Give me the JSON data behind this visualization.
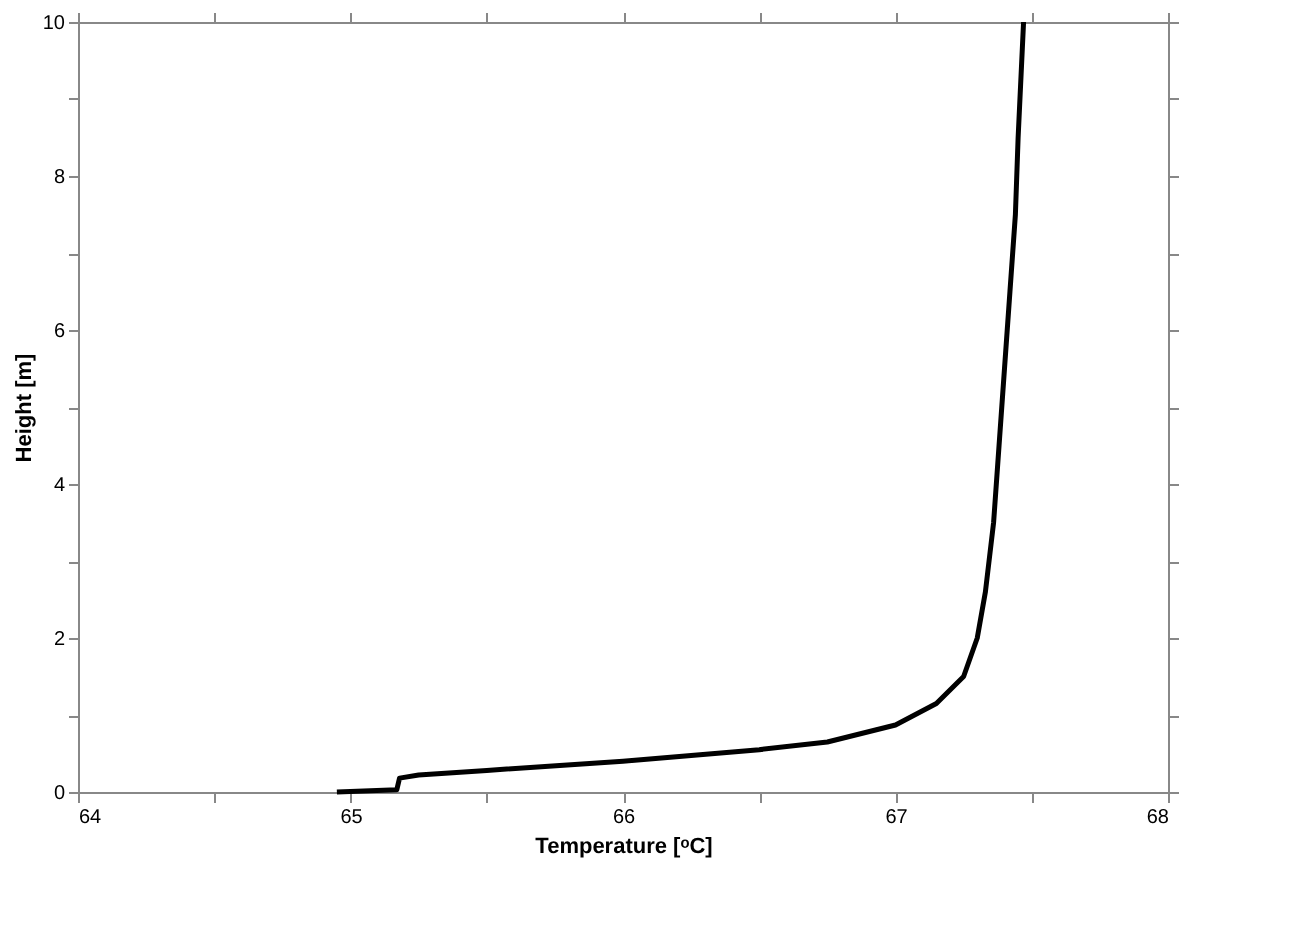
{
  "chart_data": {
    "type": "line",
    "xlabel": "Temperature [ᵒC]",
    "ylabel": "Height [m]",
    "series": [
      {
        "color": "#000000",
        "x": [
          64.95,
          65.17,
          65.18,
          65.25,
          65.5,
          66.0,
          66.5,
          66.75,
          67.0,
          67.15,
          67.25,
          67.3,
          67.33,
          67.36,
          67.38,
          67.4,
          67.42,
          67.44,
          67.45,
          67.47
        ],
        "values": [
          0.0,
          0.03,
          0.18,
          0.22,
          0.28,
          0.4,
          0.55,
          0.65,
          0.87,
          1.15,
          1.5,
          2.0,
          2.6,
          3.5,
          4.5,
          5.5,
          6.5,
          7.5,
          8.5,
          10.0
        ]
      }
    ],
    "xlim": [
      64,
      68
    ],
    "ylim": [
      0,
      10
    ],
    "xticks": [
      64,
      {
        "value": 64.5,
        "label": null
      },
      65,
      {
        "value": 65.5,
        "label": null
      },
      66,
      {
        "value": 66.5,
        "label": null
      },
      67,
      {
        "value": 67.5,
        "label": null
      },
      68
    ],
    "yticks": [
      0,
      {
        "value": 1,
        "label": null
      },
      2,
      {
        "value": 3,
        "label": null
      },
      4,
      {
        "value": 5,
        "label": null
      },
      6,
      {
        "value": 7,
        "label": null
      },
      8,
      {
        "value": 9,
        "label": null
      },
      10
    ],
    "grid": false,
    "legend": false,
    "marker": "none",
    "line_style": "solid"
  }
}
